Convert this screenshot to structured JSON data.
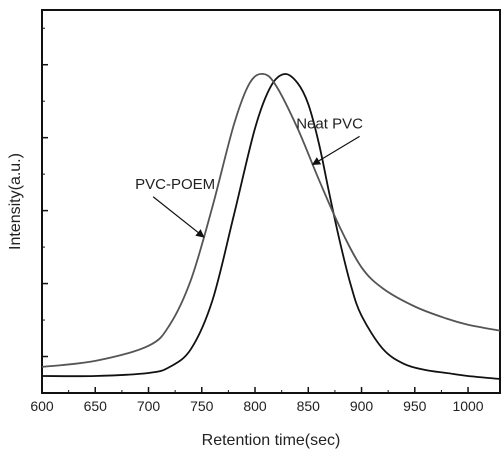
{
  "chart_data": {
    "type": "line",
    "xlabel": "Retention time(sec)",
    "ylabel": "Intensity(a.u.)",
    "xlim": [
      600,
      1030
    ],
    "ylim": [
      0,
      1
    ],
    "x_ticks": [
      600,
      650,
      700,
      750,
      800,
      850,
      900,
      950,
      1000
    ],
    "y_ticks_labeled": false,
    "grid": false,
    "legend": "none",
    "series": [
      {
        "name": "Neat PVC",
        "color": "#111111",
        "x": [
          600,
          650,
          700,
          720,
          740,
          760,
          780,
          800,
          815,
          828,
          840,
          850,
          860,
          870,
          880,
          890,
          900,
          920,
          940,
          960,
          980,
          1000,
          1030
        ],
        "y": [
          0.0,
          0.0,
          0.01,
          0.03,
          0.09,
          0.25,
          0.53,
          0.82,
          0.96,
          1.0,
          0.97,
          0.9,
          0.77,
          0.6,
          0.44,
          0.3,
          0.2,
          0.09,
          0.04,
          0.02,
          0.01,
          0.0,
          -0.01
        ]
      },
      {
        "name": "PVC-POEM",
        "color": "#555555",
        "x": [
          600,
          650,
          700,
          720,
          740,
          760,
          780,
          795,
          808,
          820,
          840,
          860,
          880,
          900,
          920,
          950,
          980,
          1000,
          1030
        ],
        "y": [
          0.03,
          0.05,
          0.1,
          0.17,
          0.32,
          0.56,
          0.83,
          0.97,
          1.0,
          0.96,
          0.82,
          0.65,
          0.49,
          0.36,
          0.29,
          0.23,
          0.19,
          0.17,
          0.15
        ]
      }
    ],
    "annotations": [
      {
        "text": "PVC-POEM",
        "target": "PVC-POEM",
        "x": 752,
        "y": 0.46,
        "text_x": 725,
        "text_y": 0.62
      },
      {
        "text": "Neat PVC",
        "target": "Neat PVC",
        "x": 854,
        "y": 0.7,
        "text_x": 870,
        "text_y": 0.82
      }
    ]
  }
}
